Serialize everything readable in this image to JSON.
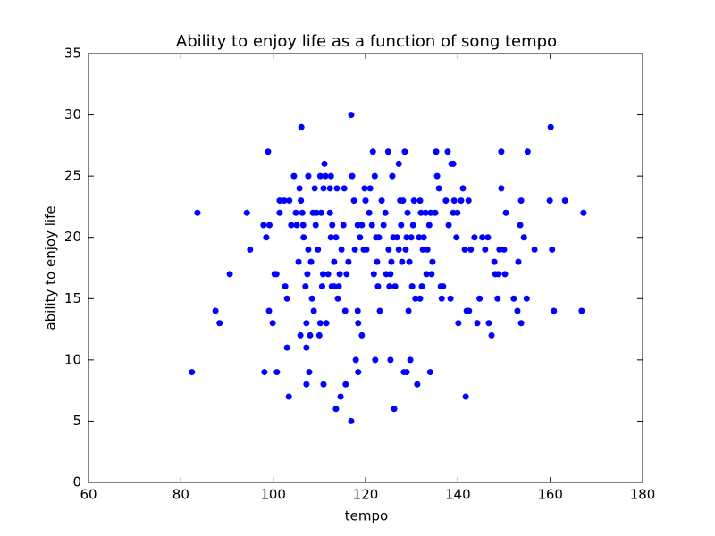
{
  "chart_data": {
    "type": "scatter",
    "title": "Ability to enjoy life as a function of song tempo",
    "x_label": "tempo",
    "y_label": "ability to enjoy life",
    "color": "#0000ff",
    "xlim": [
      60,
      180
    ],
    "xticks": [
      60,
      80,
      100,
      120,
      140,
      160,
      180
    ],
    "ylim": [
      0,
      35
    ],
    "yticks": [
      0,
      5,
      10,
      15,
      20,
      25,
      30,
      35
    ],
    "x": [
      82.4,
      83.6,
      87.5,
      88.4,
      90.6,
      94.3,
      95,
      98.1,
      98.9,
      97.9,
      98.5,
      99.2,
      99.1,
      99.9,
      100.3,
      100.7,
      100.8,
      101.4,
      101.4,
      102.4,
      102.6,
      103,
      103,
      103.4,
      103.5,
      103.9,
      104.5,
      104.9,
      105.1,
      105.7,
      105.5,
      105.9,
      106.1,
      106,
      106.3,
      106.5,
      106.6,
      107,
      107.2,
      107.2,
      107.2,
      107.4,
      107.6,
      107.6,
      107.8,
      108,
      108.2,
      108.4,
      108.6,
      108.8,
      109,
      109.2,
      109.4,
      109.7,
      110,
      110.2,
      110.2,
      110.4,
      110.6,
      110.8,
      110.9,
      110.9,
      111.1,
      111.3,
      111.5,
      111.9,
      112.3,
      112.3,
      112.5,
      112.5,
      112.7,
      112.8,
      113.2,
      113.2,
      113.6,
      113.8,
      113.6,
      114,
      114.2,
      114.4,
      114.6,
      114.8,
      115.2,
      115.4,
      115.6,
      115.7,
      115.9,
      116.3,
      116.9,
      116.9,
      117.1,
      117.5,
      117.7,
      117.9,
      118.3,
      118.3,
      118.4,
      118.4,
      118.8,
      119.2,
      119.2,
      119.6,
      119.8,
      120,
      120.2,
      120.8,
      121,
      121.4,
      121.6,
      121.8,
      122,
      122.1,
      122.3,
      122.5,
      122.7,
      122.9,
      123.1,
      123.5,
      123.9,
      124.3,
      124.5,
      124.9,
      125,
      125.2,
      125.4,
      125.4,
      125.6,
      125.8,
      126,
      126.2,
      126.4,
      126.8,
      127.2,
      127.2,
      127.5,
      127.7,
      127.9,
      128.1,
      128.3,
      128.5,
      128.7,
      128.9,
      128.9,
      129.1,
      129.3,
      129.5,
      129.7,
      129.9,
      130.1,
      130.3,
      130.5,
      130.8,
      131.2,
      131.6,
      131.8,
      131.8,
      132,
      132.2,
      132.4,
      132.6,
      133,
      133.2,
      133.4,
      133.8,
      134,
      134.1,
      134.3,
      134.5,
      135.1,
      135.3,
      135.5,
      135.9,
      136.3,
      136.5,
      136.8,
      137.4,
      137.8,
      138,
      138.4,
      138.6,
      139,
      139.2,
      139,
      139.7,
      139.9,
      140.1,
      140.7,
      141.1,
      141.5,
      141.7,
      141.9,
      142.3,
      142.4,
      142.8,
      143.6,
      144.2,
      144.7,
      145.3,
      145.9,
      146.5,
      146.7,
      147.3,
      147.9,
      148.1,
      148.6,
      148.8,
      149,
      149.4,
      149.4,
      150,
      150.2,
      150.4,
      152.1,
      152.9,
      153.1,
      153.5,
      153.7,
      153.7,
      154.3,
      154.9,
      155.1,
      156.6,
      159.9,
      160.1,
      160.4,
      160.8,
      163.2,
      166.8,
      167.2
    ],
    "values": [
      9,
      22,
      14,
      13,
      17,
      22,
      19,
      9,
      27,
      21,
      20,
      21,
      14,
      13,
      17,
      17,
      9,
      22,
      23,
      23,
      16,
      15,
      11,
      7,
      23,
      21,
      25,
      22,
      21,
      24,
      18,
      12,
      29,
      23,
      22,
      21,
      20,
      16,
      13,
      11,
      8,
      17,
      25,
      19,
      9,
      12,
      18,
      15,
      22,
      14,
      24,
      21,
      22,
      19,
      12,
      13,
      25,
      22,
      16,
      17,
      8,
      24,
      26,
      25,
      13,
      17,
      22,
      24,
      25,
      20,
      16,
      21,
      18,
      16,
      6,
      24,
      20,
      15,
      16,
      17,
      7,
      19,
      21,
      24,
      14,
      8,
      17,
      18,
      5,
      30,
      25,
      23,
      19,
      10,
      21,
      14,
      13,
      9,
      20,
      21,
      12,
      19,
      24,
      23,
      19,
      22,
      24,
      21,
      27,
      17,
      25,
      10,
      20,
      18,
      16,
      20,
      14,
      23,
      21,
      22,
      17,
      27,
      19,
      16,
      17,
      10,
      18,
      25,
      20,
      6,
      16,
      20,
      19,
      26,
      23,
      21,
      18,
      23,
      9,
      27,
      19,
      20,
      9,
      22,
      14,
      18,
      10,
      20,
      16,
      21,
      23,
      15,
      8,
      20,
      15,
      23,
      22,
      16,
      19,
      20,
      22,
      17,
      19,
      21,
      9,
      22,
      17,
      18,
      22,
      27,
      25,
      24,
      16,
      15,
      16,
      23,
      27,
      21,
      15,
      26,
      22,
      23,
      26,
      20,
      22,
      13,
      23,
      24,
      19,
      7,
      14,
      23,
      14,
      19,
      20,
      13,
      15,
      20,
      19,
      20,
      13,
      12,
      18,
      17,
      15,
      17,
      19,
      27,
      24,
      19,
      17,
      22,
      15,
      14,
      18,
      21,
      23,
      13,
      20,
      15,
      27,
      19,
      23,
      29,
      19,
      14,
      23,
      14,
      22
    ]
  }
}
